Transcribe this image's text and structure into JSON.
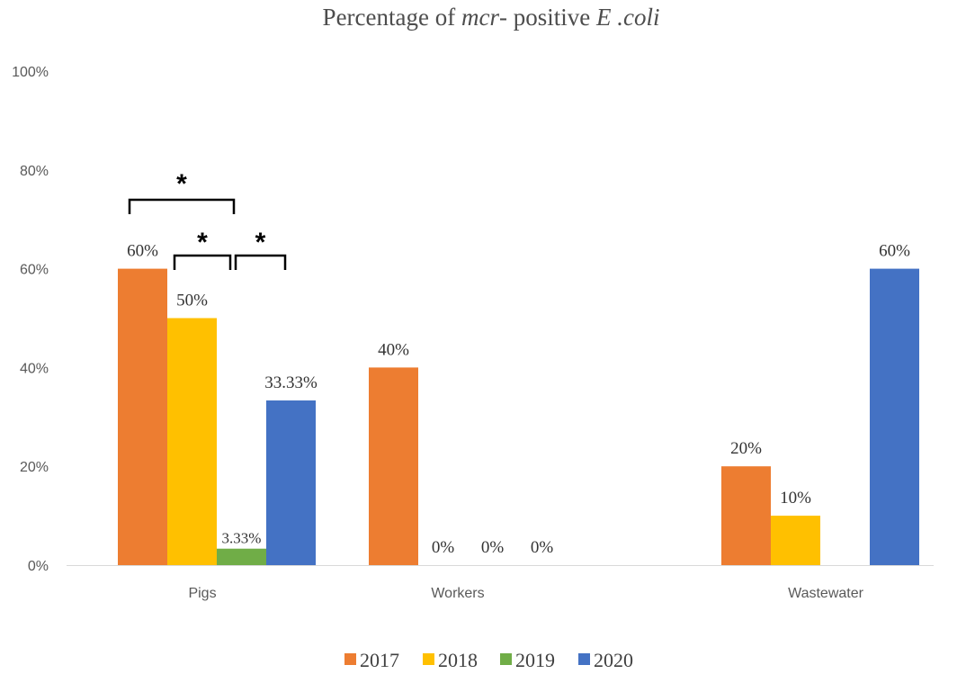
{
  "chart_data": {
    "type": "bar",
    "title": {
      "prefix": "Percentage of ",
      "italic1": "mcr",
      "middle": "- positive ",
      "italic2": "E .coli"
    },
    "xlabel": "",
    "ylabel": "",
    "ylim": [
      0,
      100
    ],
    "yticks": [
      0,
      20,
      40,
      60,
      80,
      100
    ],
    "ytick_labels": [
      "0%",
      "20%",
      "40%",
      "60%",
      "80%",
      "100%"
    ],
    "categories": [
      "Pigs",
      "Workers",
      "Wastewater"
    ],
    "series": [
      {
        "name": "2017",
        "color": "#ED7D31",
        "values": [
          60,
          40,
          20
        ],
        "labels": [
          "60%",
          "40%",
          "20%"
        ]
      },
      {
        "name": "2018",
        "color": "#FFC000",
        "values": [
          50,
          0,
          10
        ],
        "labels": [
          "50%",
          "0%",
          "10%"
        ]
      },
      {
        "name": "2019",
        "color": "#70AD47",
        "values": [
          3.33,
          0,
          null
        ],
        "labels": [
          "3.33%",
          "0%",
          null
        ]
      },
      {
        "name": "2020",
        "color": "#4472C4",
        "values": [
          33.33,
          0,
          60
        ],
        "labels": [
          "33.33%",
          "0%",
          "60%"
        ]
      }
    ],
    "legend": {
      "position": "bottom"
    },
    "grid": false,
    "significance": [
      {
        "category": "Pigs",
        "from_series": "2017",
        "to_series": "2019",
        "label": "*"
      },
      {
        "category": "Pigs",
        "from_series": "2018",
        "to_series": "2019",
        "label": "*"
      },
      {
        "category": "Pigs",
        "from_series": "2019",
        "to_series": "2020",
        "label": "*"
      }
    ]
  }
}
